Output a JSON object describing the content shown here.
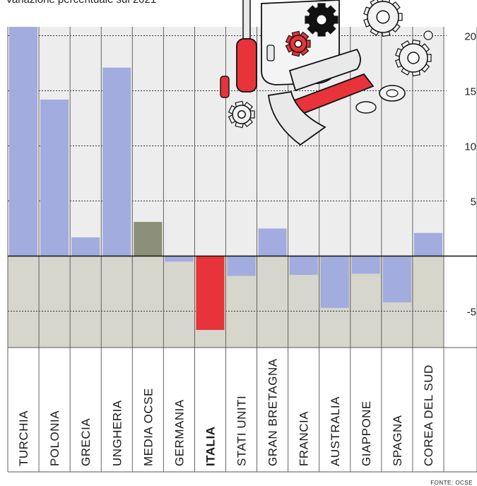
{
  "chart_data": {
    "type": "bar",
    "title": "Variazione percentuale sul 2021",
    "source": "FONTE: OCSE",
    "categories": [
      "TURCHIA",
      "POLONIA",
      "GRECIA",
      "UNGHERIA",
      "MEDIA OCSE",
      "GERMANIA",
      "ITALIA",
      "STATI UNITI",
      "GRAN BRETAGNA",
      "FRANCIA",
      "AUSTRALIA",
      "GIAPPONE",
      "SPAGNA",
      "COREA DEL SUD"
    ],
    "values": [
      20.8,
      14.2,
      1.7,
      17.1,
      3.1,
      -0.5,
      -6.7,
      -1.8,
      2.5,
      -1.7,
      -4.7,
      -1.6,
      -4.2,
      2.1
    ],
    "highlight": "ITALIA",
    "ylim": [
      -8.3,
      20.8
    ],
    "yticks": [
      20,
      15,
      10,
      5,
      -5
    ],
    "ytick_labels": [
      "20",
      "15",
      "10",
      "5",
      "-5"
    ],
    "xlabel": "",
    "ylabel": "",
    "grid": true,
    "colors": {
      "positive_bar": "#a3acde",
      "negative_bar": "#a3acde",
      "average_bar": "#8c8f79",
      "highlight_bar": "#e8333a",
      "positive_bg": "#ededed",
      "negative_bg": "#d6d6cc",
      "grid": "#333333",
      "zero_line": "#111111"
    }
  }
}
